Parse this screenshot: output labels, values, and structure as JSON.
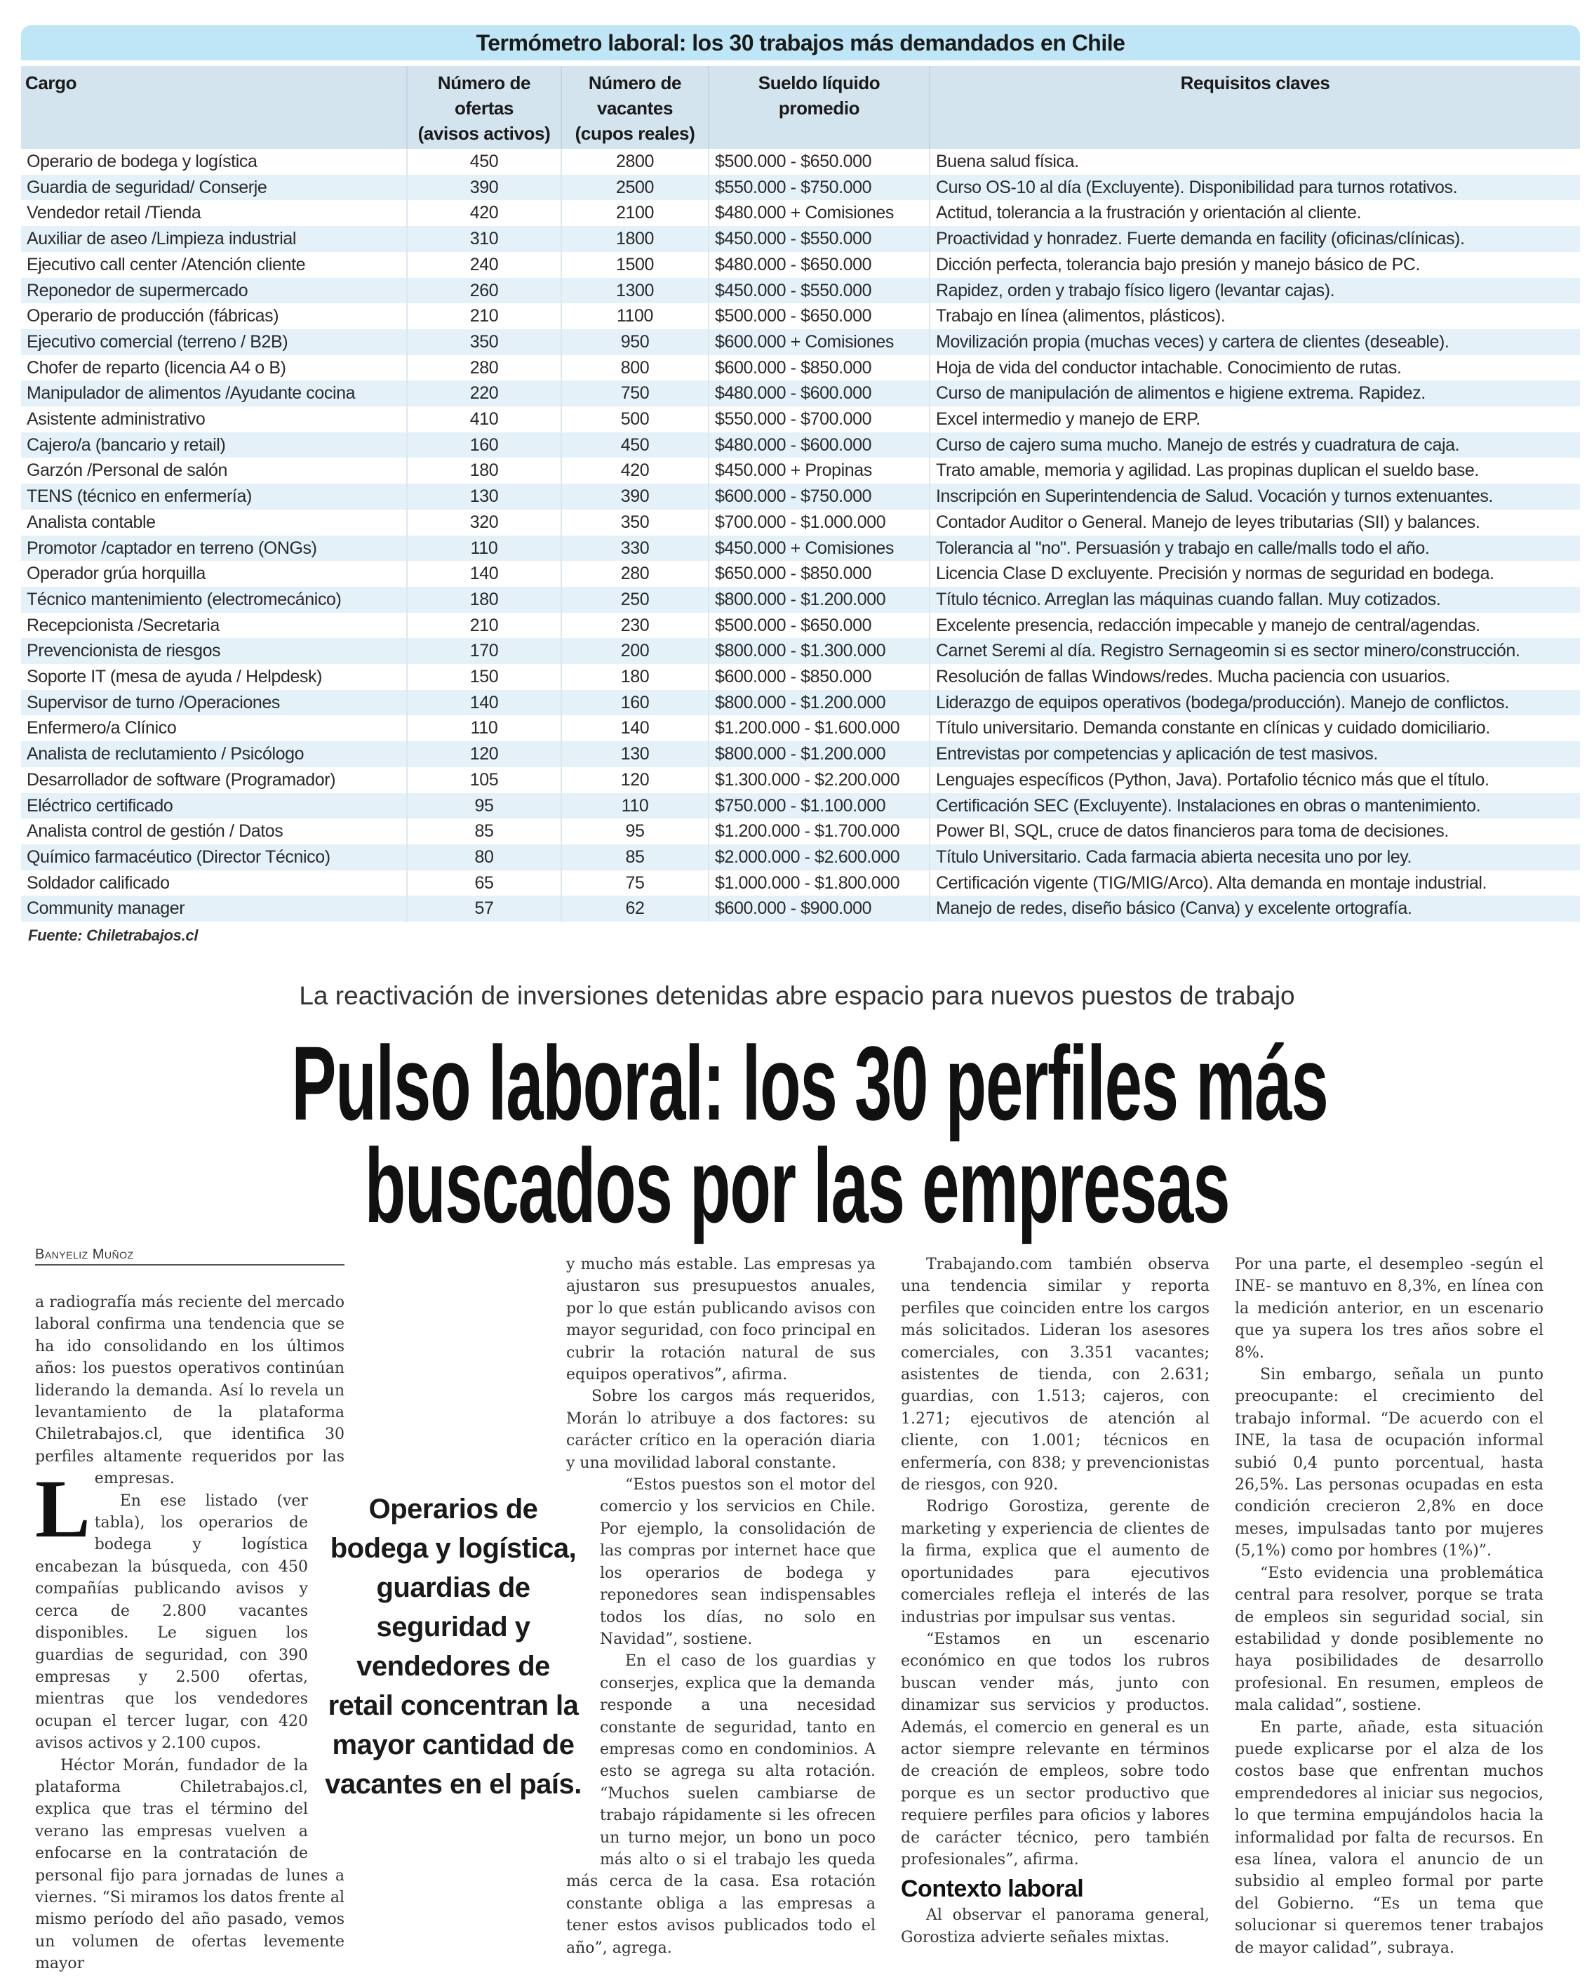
{
  "table": {
    "title": "Termómetro laboral: los 30 trabajos más demandados en Chile",
    "headers": [
      "Cargo",
      "Número de ofertas (avisos activos)",
      "Número de vacantes (cupos reales)",
      "Sueldo líquido promedio",
      "Requisitos claves"
    ],
    "header_lines": [
      [
        "Cargo"
      ],
      [
        "Número de",
        "ofertas",
        "(avisos activos)"
      ],
      [
        "Número de",
        "vacantes",
        "(cupos reales)"
      ],
      [
        "Sueldo líquido",
        "promedio"
      ],
      [
        "Requisitos claves"
      ]
    ],
    "rows": [
      [
        "Operario de bodega y logística",
        "450",
        "2800",
        "$500.000 - $650.000",
        "Buena salud física."
      ],
      [
        "Guardia de seguridad/ Conserje",
        "390",
        "2500",
        "$550.000 - $750.000",
        "Curso OS-10 al día (Excluyente). Disponibilidad para turnos rotativos."
      ],
      [
        "Vendedor retail /Tienda",
        "420",
        "2100",
        "$480.000 + Comisiones",
        "Actitud, tolerancia a la frustración y orientación al cliente."
      ],
      [
        "Auxiliar de aseo /Limpieza industrial",
        "310",
        "1800",
        "$450.000 - $550.000",
        "Proactividad y honradez. Fuerte demanda en facility (oficinas/clínicas)."
      ],
      [
        "Ejecutivo call center /Atención cliente",
        "240",
        "1500",
        "$480.000 - $650.000",
        "Dicción perfecta, tolerancia bajo presión y manejo básico de PC."
      ],
      [
        "Reponedor de supermercado",
        "260",
        "1300",
        "$450.000 - $550.000",
        "Rapidez, orden y trabajo físico ligero (levantar cajas)."
      ],
      [
        "Operario de producción (fábricas)",
        "210",
        "1100",
        "$500.000 - $650.000",
        "Trabajo en línea (alimentos, plásticos)."
      ],
      [
        "Ejecutivo comercial (terreno / B2B)",
        "350",
        "950",
        "$600.000 + Comisiones",
        "Movilización propia (muchas veces) y cartera de clientes (deseable)."
      ],
      [
        "Chofer de reparto (licencia A4 o B)",
        "280",
        "800",
        "$600.000 - $850.000",
        "Hoja de vida del conductor intachable. Conocimiento de rutas."
      ],
      [
        "Manipulador de alimentos /Ayudante cocina",
        "220",
        "750",
        "$480.000 - $600.000",
        "Curso de manipulación de alimentos e higiene extrema. Rapidez."
      ],
      [
        "Asistente administrativo",
        "410",
        "500",
        "$550.000 - $700.000",
        "Excel intermedio y manejo de ERP."
      ],
      [
        "Cajero/a (bancario y retail)",
        "160",
        "450",
        "$480.000 - $600.000",
        "Curso de cajero suma mucho. Manejo de estrés y cuadratura de caja."
      ],
      [
        "Garzón /Personal de salón",
        "180",
        "420",
        "$450.000 + Propinas",
        "Trato amable, memoria y agilidad. Las propinas duplican el sueldo base."
      ],
      [
        "TENS (técnico en enfermería)",
        "130",
        "390",
        "$600.000 - $750.000",
        "Inscripción en Superintendencia de Salud. Vocación y turnos extenuantes."
      ],
      [
        "Analista contable",
        "320",
        "350",
        "$700.000 - $1.000.000",
        "Contador Auditor o General. Manejo de leyes tributarias (SII) y balances."
      ],
      [
        "Promotor /captador en terreno (ONGs)",
        "110",
        "330",
        "$450.000 + Comisiones",
        "Tolerancia al \"no\". Persuasión y trabajo en calle/malls todo el año."
      ],
      [
        "Operador grúa horquilla",
        "140",
        "280",
        "$650.000 - $850.000",
        "Licencia Clase D excluyente. Precisión y normas de seguridad en bodega."
      ],
      [
        "Técnico mantenimiento (electromecánico)",
        "180",
        "250",
        "$800.000 - $1.200.000",
        "Título técnico. Arreglan las máquinas cuando fallan. Muy cotizados."
      ],
      [
        "Recepcionista /Secretaria",
        "210",
        "230",
        "$500.000 - $650.000",
        "Excelente presencia, redacción impecable y manejo de central/agendas."
      ],
      [
        "Prevencionista de riesgos",
        "170",
        "200",
        "$800.000 - $1.300.000",
        "Carnet Seremi al día. Registro Sernageomin si es sector minero/construcción."
      ],
      [
        "Soporte IT (mesa de ayuda / Helpdesk)",
        "150",
        "180",
        "$600.000 - $850.000",
        "Resolución de fallas Windows/redes. Mucha paciencia con usuarios."
      ],
      [
        "Supervisor de turno /Operaciones",
        "140",
        "160",
        "$800.000 - $1.200.000",
        "Liderazgo de equipos operativos (bodega/producción). Manejo de conflictos."
      ],
      [
        "Enfermero/a Clínico",
        "110",
        "140",
        "$1.200.000 - $1.600.000",
        "Título universitario. Demanda constante en clínicas y cuidado domiciliario."
      ],
      [
        "Analista de reclutamiento / Psicólogo",
        "120",
        "130",
        "$800.000 - $1.200.000",
        "Entrevistas por competencias y aplicación de test masivos."
      ],
      [
        "Desarrollador de software (Programador)",
        "105",
        "120",
        "$1.300.000 - $2.200.000",
        "Lenguajes específicos (Python, Java). Portafolio técnico más que el título."
      ],
      [
        "Eléctrico certificado",
        "95",
        "110",
        "$750.000 - $1.100.000",
        "Certificación SEC (Excluyente). Instalaciones en obras o mantenimiento."
      ],
      [
        "Analista control de gestión / Datos",
        "85",
        "95",
        "$1.200.000 - $1.700.000",
        "Power BI, SQL, cruce de datos financieros para toma de decisiones."
      ],
      [
        "Químico farmacéutico (Director Técnico)",
        "80",
        "85",
        "$2.000.000 - $2.600.000",
        "Título Universitario. Cada farmacia abierta necesita uno por ley."
      ],
      [
        "Soldador calificado",
        "65",
        "75",
        "$1.000.000 - $1.800.000",
        "Certificación vigente (TIG/MIG/Arco). Alta demanda en montaje industrial."
      ],
      [
        "Community manager",
        "57",
        "62",
        "$600.000 - $900.000",
        "Manejo de redes, diseño básico (Canva) y excelente ortografía."
      ]
    ],
    "source": "Fuente: Chiletrabajos.cl",
    "colors": {
      "title_bg": "#bfe6f7",
      "header_bg": "#d4e4ee",
      "stripe_bg": "#e4f1f9"
    }
  },
  "article": {
    "kicker": "La reactivación de inversiones detenidas abre espacio para nuevos puestos de trabajo",
    "headline_lines": [
      "Pulso laboral: los 30 perfiles más",
      "buscados por las empresas"
    ],
    "byline": "Banyeliz Muñoz",
    "pull_quote": "Operarios de bodega y logística, guardias de seguridad y vendedores de retail concentran la mayor cantidad de vacantes en el país.",
    "drop_cap": "L",
    "columns": [
      [
        {
          "text": "a radiografía más reciente del mercado laboral confirma una tendencia que se ha ido consolidando en los últimos años: los puestos operativos continúan liderando la demanda. Así lo revela un levantamiento de la plataforma Chiletrabajos.cl, que identifica 30 perfiles altamente requeridos por las empresas.",
          "dropcap": true
        },
        {
          "text": "En ese listado (ver tabla), los operarios de bodega y logística encabezan la búsqueda, con 450 compañías publicando avisos y cerca de 2.800 vacantes disponibles. Le siguen los guardias de seguridad, con 390 empresas y 2.500 ofertas, mientras que los vendedores ocupan el tercer lugar, con 420 avisos activos y 2.100 cupos."
        },
        {
          "text": "Héctor Morán, fundador de la plataforma Chiletrabajos.cl, explica que tras el término del verano las empresas vuelven a enfocarse en la contratación de personal fijo para jornadas de lunes a viernes. “Si miramos los datos frente al mismo período del año pasado, vemos un volumen de ofertas levemente mayor"
        }
      ],
      [
        {
          "text": "y mucho más estable. Las empresas ya ajustaron sus presupuestos anuales, por lo que están publicando avisos con mayor seguridad, con foco principal en cubrir la rotación natural de sus equipos operativos”, afirma.",
          "cont": true
        },
        {
          "text": "Sobre los cargos más requeridos, Morán lo atribuye a dos factores: su carácter crítico en la operación diaria y una movilidad laboral constante."
        },
        {
          "text": "“Estos puestos son el motor del comercio y los servicios en Chile. Por ejemplo, la consolidación de las compras por internet hace que los operarios de bodega y reponedores sean indispensables todos los días, no solo en Navidad”, sostiene."
        },
        {
          "text": "En el caso de los guardias y conserjes, explica que la demanda responde a una necesidad constante de seguridad, tanto en empresas como en condominios. A esto se agrega su alta rotación. “Muchos suelen cambiarse de trabajo rápidamente si les ofrecen un turno mejor, un bono un poco más alto o si el trabajo les queda más cerca de la casa. Esa rotación constante obliga a las empresas a tener estos avisos publicados todo el año”, agrega."
        }
      ],
      [
        {
          "text": "Trabajando.com también observa una tendencia similar y reporta perfiles que coinciden entre los cargos más solicitados. Lideran los asesores comerciales, con 3.351 vacantes; asistentes de tienda, con 2.631; guardias, con 1.513; cajeros, con 1.271; ejecutivos de atención al cliente, con 1.001; técnicos en enfermería, con 838; y prevencionistas de riesgos, con 920."
        },
        {
          "text": "Rodrigo Gorostiza, gerente de marketing y experiencia de clientes de la firma, explica que el aumento de oportunidades para ejecutivos comerciales refleja el interés de las industrias por impulsar sus ventas."
        },
        {
          "text": "“Estamos en un escenario económico en que todos los rubros buscan vender más, junto con dinamizar sus servicios y productos. Además, el comercio en general es un actor siempre relevante en términos de creación de empleos, sobre todo porque es un sector productivo que requiere perfiles para oficios y labores de carácter técnico, pero también profesionales”, afirma."
        },
        {
          "text": "Contexto laboral",
          "heading": true
        },
        {
          "text": "Al observar el panorama general, Gorostiza advierte señales mixtas."
        }
      ],
      [
        {
          "text": "Por una parte, el desempleo -según el INE- se mantuvo en 8,3%, en línea con la medición anterior, en un escenario que ya supera los tres años sobre el 8%.",
          "cont": true
        },
        {
          "text": "Sin embargo, señala un punto preocupante: el crecimiento del trabajo informal. “De acuerdo con el INE, la tasa de ocupación informal subió 0,4 punto porcentual, hasta 26,5%. Las personas ocupadas en esta condición crecieron 2,8% en doce meses, impulsadas tanto por mujeres (5,1%) como por hombres (1%)”."
        },
        {
          "text": "“Esto evidencia una problemática central para resolver, porque se trata de empleos sin seguridad social, sin estabilidad y donde posiblemente no haya posibilidades de desarrollo profesional. En resumen, empleos de mala calidad”, sostiene."
        },
        {
          "text": "En parte, añade, esta situación puede explicarse por el alza de los costos base que enfrentan muchos emprendedores al iniciar sus negocios, lo que termina empujándolos hacia la informalidad por falta de recursos. En esa línea, valora el anuncio de un subsidio al empleo formal por parte del Gobierno. “Es un tema que solucionar si queremos tener trabajos de mayor calidad”, subraya."
        }
      ]
    ]
  }
}
